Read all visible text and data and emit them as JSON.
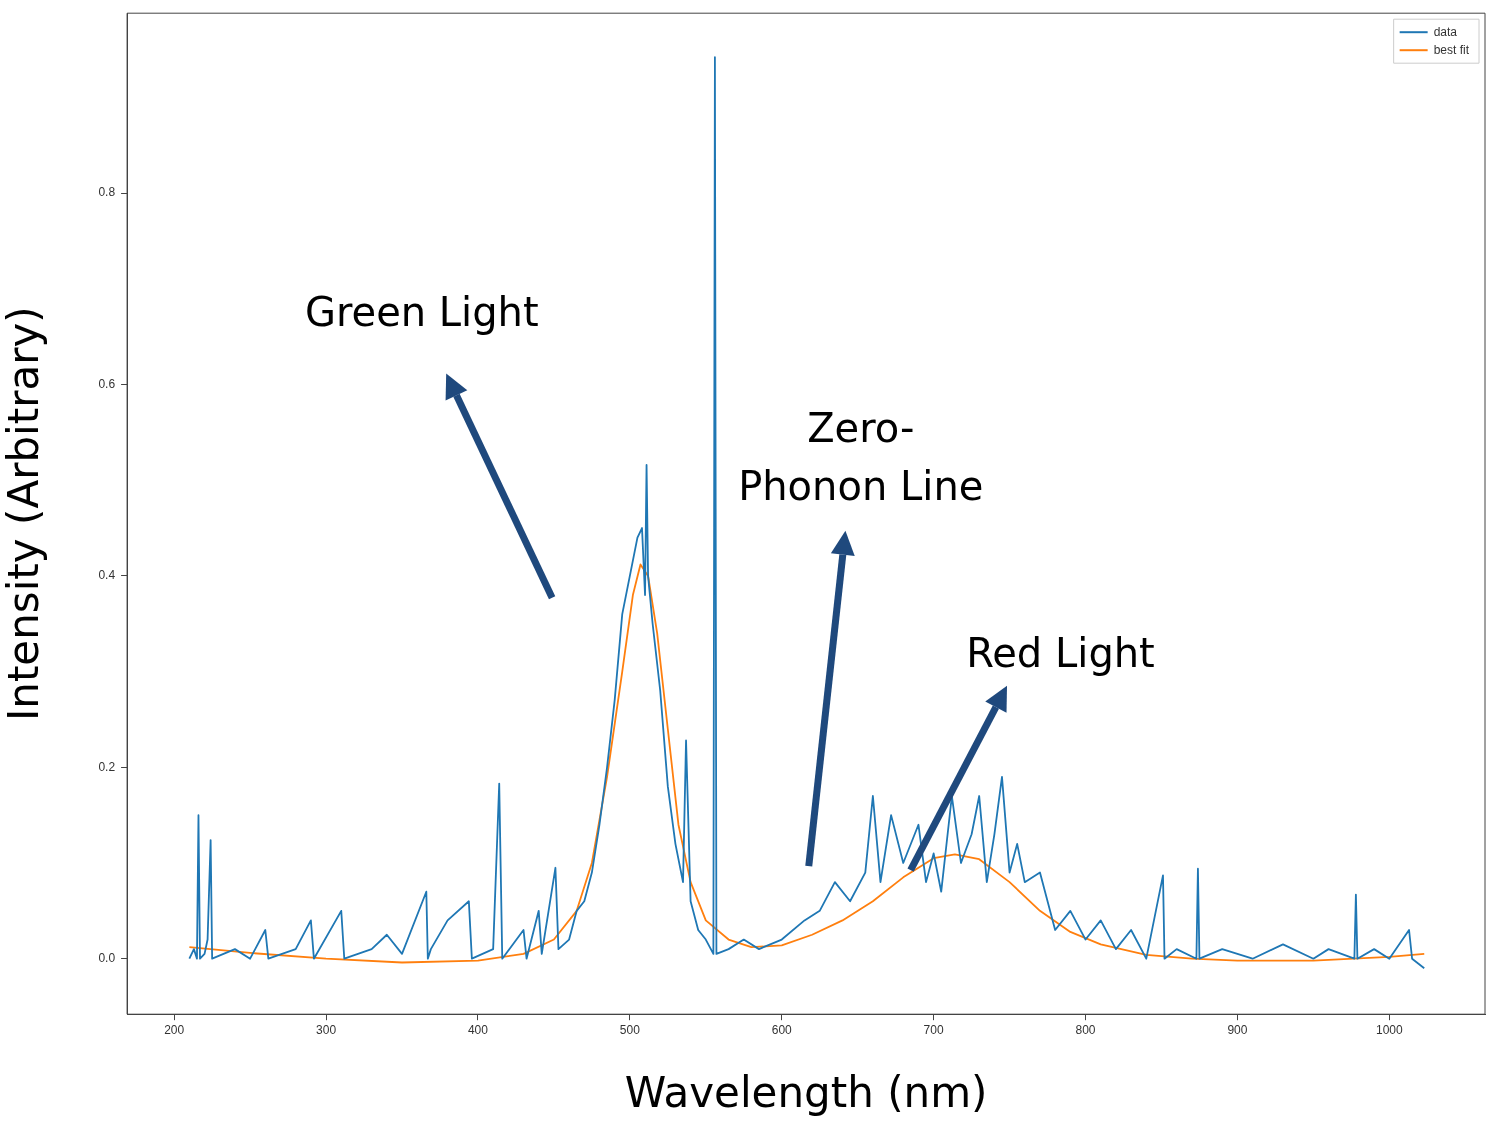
{
  "chart_data": {
    "type": "line",
    "xlabel": "Wavelength (nm)",
    "ylabel": "Intensity (Arbitrary)",
    "xlim": [
      169,
      1063
    ],
    "ylim": [
      -0.058,
      0.988
    ],
    "xticks": [
      200,
      300,
      400,
      500,
      600,
      700,
      800,
      900,
      1000
    ],
    "yticks": [
      {
        "value": 0,
        "label": "0.0"
      },
      {
        "value": 0.2,
        "label": "0.2"
      },
      {
        "value": 0.4,
        "label": "0.4"
      },
      {
        "value": 0.6,
        "label": "0.6"
      },
      {
        "value": 0.8,
        "label": "0.8"
      }
    ],
    "grid": false,
    "legend": "top right",
    "marker": "none",
    "line_style": "solid",
    "annotations": [
      "Green Light",
      "Zero-\nPhonon Line",
      "Red Light"
    ],
    "series": [
      {
        "name": "data",
        "color": "#1f77b4",
        "x": [
          210,
          213,
          215,
          216,
          217,
          220,
          222,
          224,
          225,
          240,
          250,
          260,
          262,
          280,
          290,
          292,
          310,
          312,
          330,
          340,
          350,
          366,
          367,
          369,
          380,
          394,
          396,
          410,
          414,
          416,
          430,
          432,
          440,
          442,
          451,
          453,
          460,
          465,
          470,
          475,
          480,
          485,
          490,
          495,
          500,
          505,
          508,
          510,
          511,
          512,
          515,
          520,
          525,
          530,
          535,
          537,
          540,
          545,
          550,
          555,
          556,
          557,
          565,
          575,
          585,
          600,
          615,
          625,
          635,
          645,
          655,
          660,
          665,
          672,
          680,
          690,
          695,
          700,
          705,
          712,
          718,
          725,
          730,
          735,
          740,
          745,
          750,
          755,
          760,
          770,
          780,
          790,
          800,
          810,
          820,
          830,
          840,
          851,
          852,
          860,
          873,
          874,
          875,
          890,
          910,
          930,
          950,
          960,
          977,
          978,
          979,
          990,
          1000,
          1013,
          1015,
          1023
        ],
        "values": [
          0.0,
          0.01,
          0.0,
          0.15,
          0.0,
          0.005,
          0.02,
          0.124,
          0.0,
          0.01,
          0.0,
          0.03,
          0.0,
          0.01,
          0.04,
          0.0,
          0.05,
          0.0,
          0.01,
          0.025,
          0.005,
          0.07,
          0.0,
          0.01,
          0.04,
          0.06,
          0.0,
          0.01,
          0.183,
          0.0,
          0.03,
          0.0,
          0.05,
          0.005,
          0.095,
          0.01,
          0.02,
          0.05,
          0.06,
          0.09,
          0.14,
          0.2,
          0.27,
          0.36,
          0.4,
          0.44,
          0.45,
          0.38,
          0.516,
          0.4,
          0.35,
          0.28,
          0.18,
          0.12,
          0.08,
          0.228,
          0.06,
          0.03,
          0.02,
          0.005,
          0.942,
          0.005,
          0.01,
          0.02,
          0.01,
          0.02,
          0.04,
          0.05,
          0.08,
          0.06,
          0.09,
          0.17,
          0.08,
          0.15,
          0.1,
          0.14,
          0.08,
          0.11,
          0.07,
          0.17,
          0.1,
          0.13,
          0.17,
          0.08,
          0.13,
          0.19,
          0.09,
          0.12,
          0.08,
          0.09,
          0.03,
          0.05,
          0.02,
          0.04,
          0.01,
          0.03,
          0.0,
          0.087,
          0.0,
          0.01,
          0.0,
          0.094,
          0.0,
          0.01,
          0.0,
          0.015,
          0.0,
          0.01,
          0.0,
          0.067,
          0.0,
          0.01,
          0.0,
          0.03,
          0.0,
          -0.01
        ]
      },
      {
        "name": "best fit",
        "color": "#ff7f0e",
        "x": [
          210,
          250,
          300,
          350,
          400,
          430,
          450,
          465,
          475,
          485,
          495,
          502,
          507,
          512,
          518,
          525,
          532,
          540,
          550,
          565,
          580,
          600,
          620,
          640,
          660,
          680,
          700,
          714,
          730,
          750,
          770,
          790,
          810,
          840,
          870,
          900,
          950,
          1000,
          1023
        ],
        "values": [
          0.012,
          0.006,
          0.0,
          -0.004,
          -0.002,
          0.005,
          0.02,
          0.05,
          0.1,
          0.19,
          0.3,
          0.38,
          0.412,
          0.4,
          0.34,
          0.24,
          0.14,
          0.08,
          0.04,
          0.02,
          0.012,
          0.014,
          0.025,
          0.04,
          0.06,
          0.085,
          0.105,
          0.109,
          0.104,
          0.08,
          0.05,
          0.028,
          0.015,
          0.004,
          0.0,
          -0.002,
          -0.002,
          0.002,
          0.005
        ]
      }
    ]
  }
}
